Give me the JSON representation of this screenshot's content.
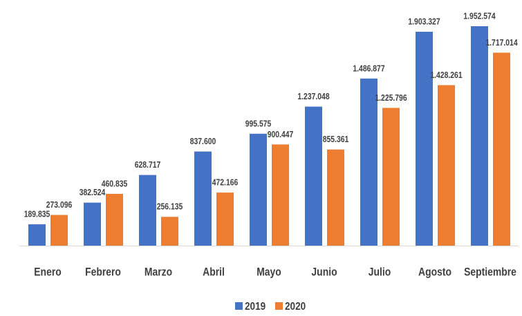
{
  "chart_data": {
    "type": "bar",
    "categories": [
      "Enero",
      "Febrero",
      "Marzo",
      "Abril",
      "Mayo",
      "Junio",
      "Julio",
      "Agosto",
      "Septiembre"
    ],
    "series": [
      {
        "name": "2019",
        "color": "#4472c4",
        "values": [
          189835,
          382524,
          628717,
          837600,
          995575,
          1237048,
          1486877,
          1903327,
          1952574
        ],
        "value_labels": [
          "189.835",
          "382.524",
          "628.717",
          "837.600",
          "995.575",
          "1.237.048",
          "1.486.877",
          "1.903.327",
          "1.952.574"
        ]
      },
      {
        "name": "2020",
        "color": "#ed7d31",
        "values": [
          273096,
          460835,
          256135,
          472166,
          900447,
          855361,
          1225796,
          1428261,
          1717014
        ],
        "value_labels": [
          "273.096",
          "460.835",
          "256.135",
          "472.166",
          "900.447",
          "855.361",
          "1.225.796",
          "1.428.261",
          "1.717.014"
        ]
      }
    ],
    "legend": "bottom"
  }
}
